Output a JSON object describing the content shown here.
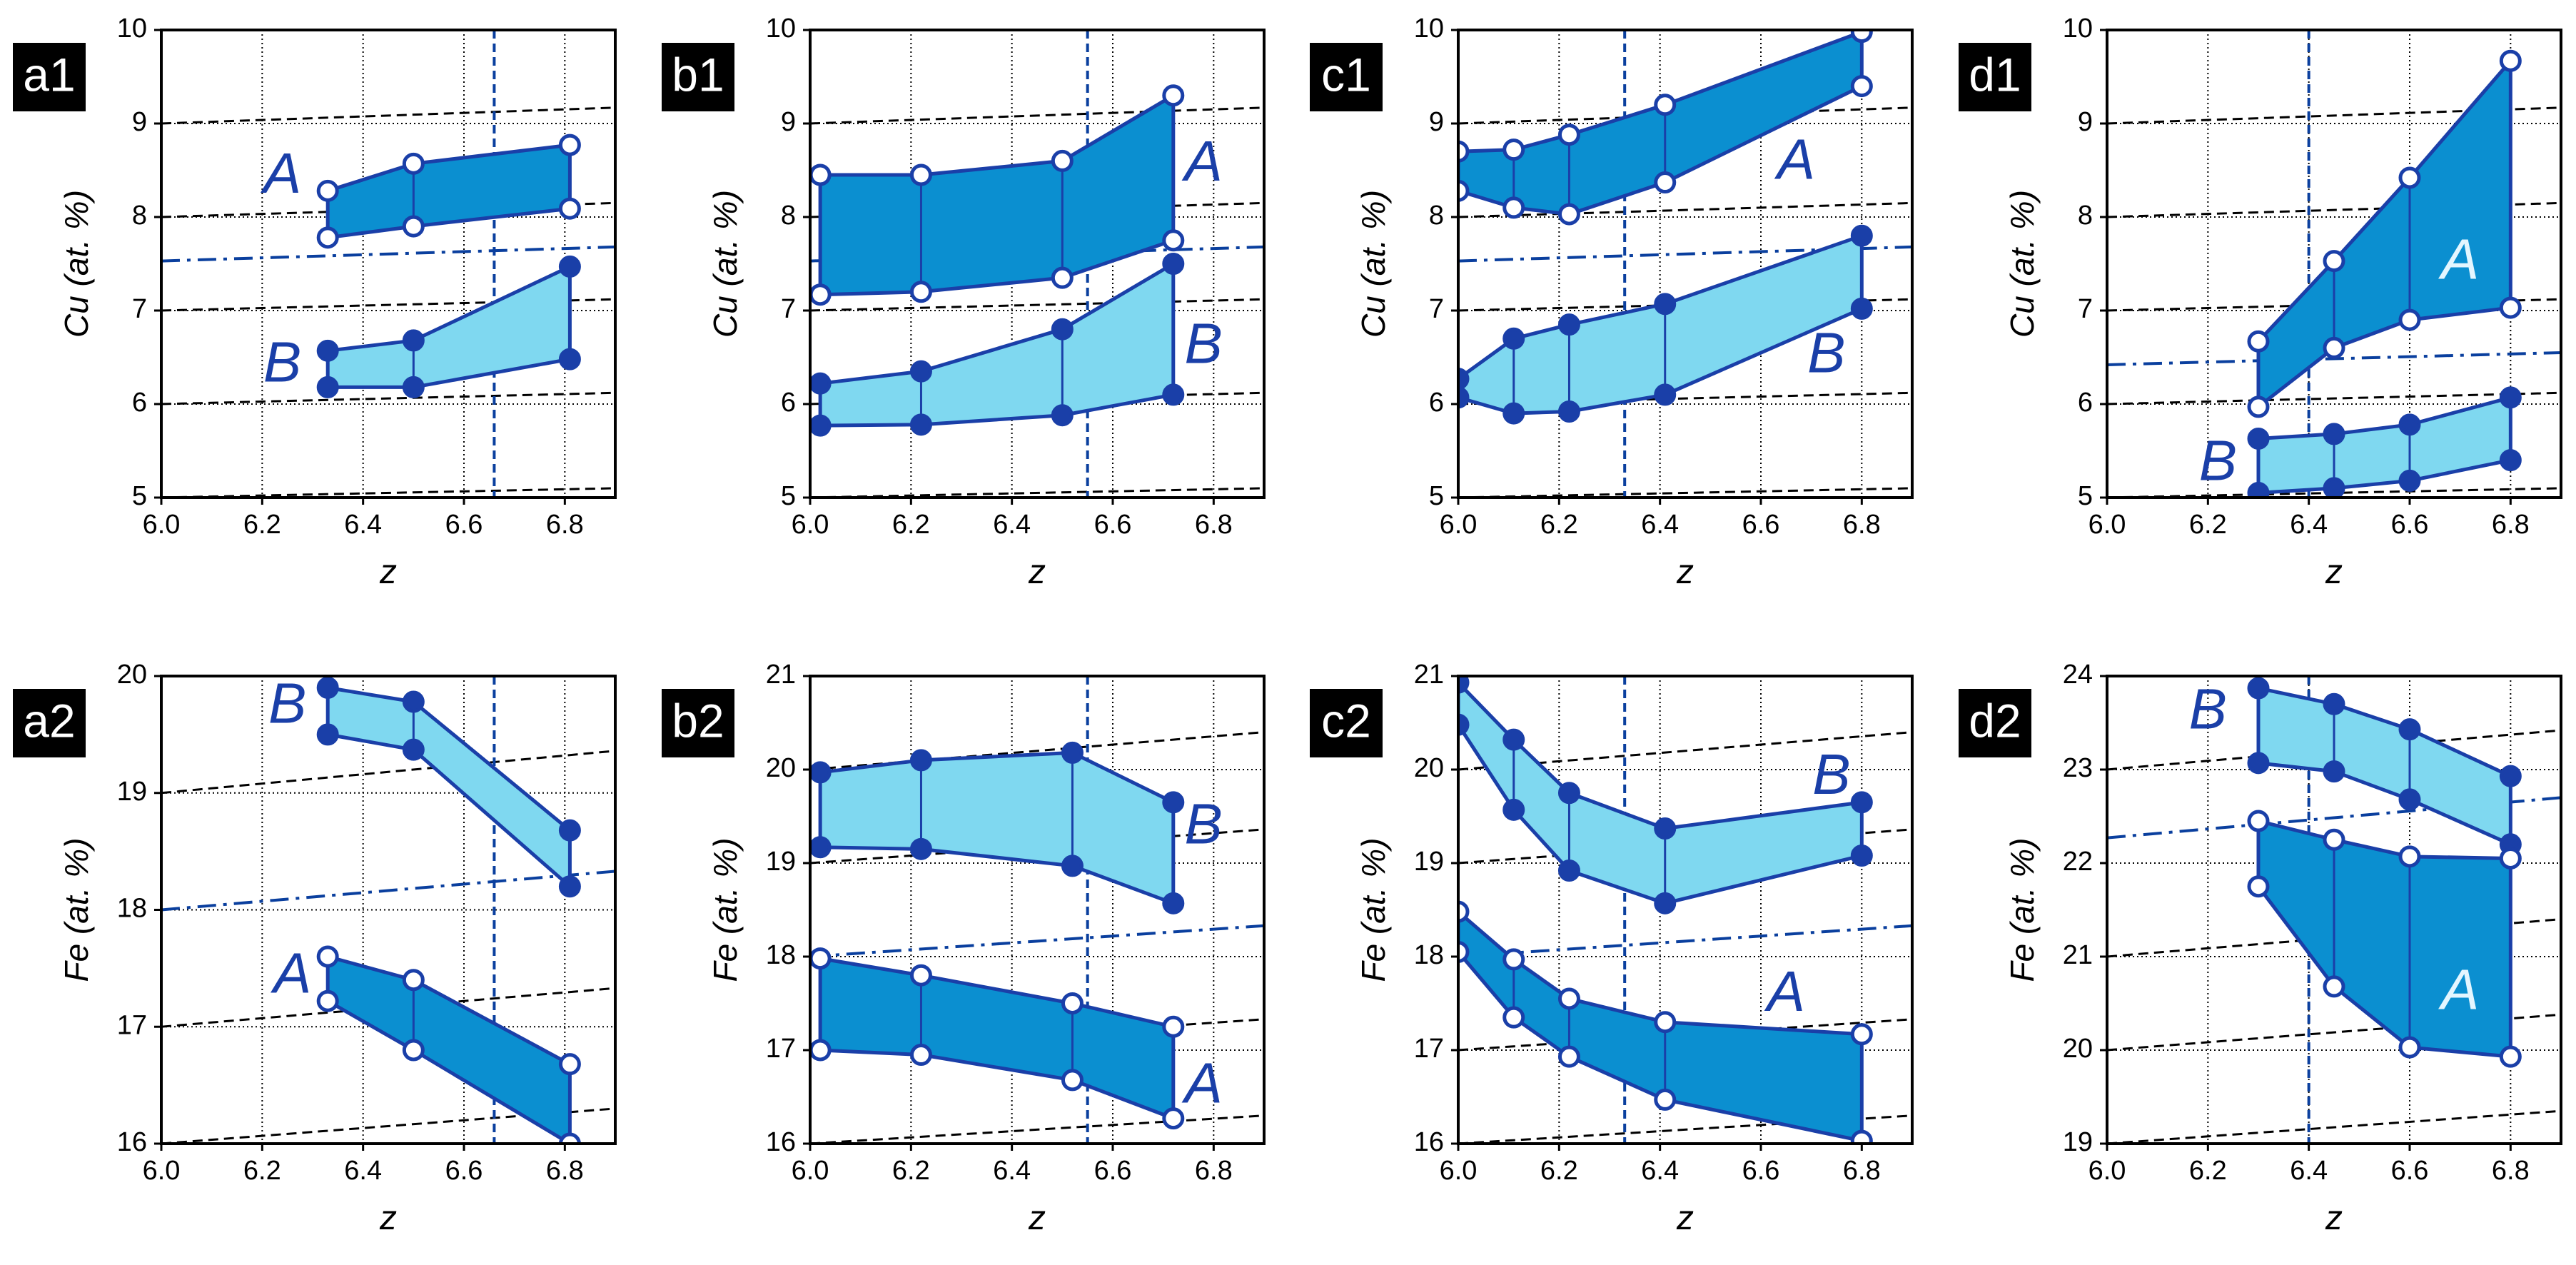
{
  "colors": {
    "outline": "#1a3fa8",
    "band_A": "#0b8fd0",
    "band_B": "#7fd8f0",
    "guide": "#0a3f9e",
    "label_bg": "#000000",
    "label_fg": "#ffffff",
    "grid": "#000000",
    "dashed": "#000000"
  },
  "chart_data": [
    {
      "type": "area",
      "panel": "a1",
      "xlabel": "z",
      "ylabel": "Cu (at. %)",
      "xlim": [
        6.0,
        6.9
      ],
      "ylim": [
        5,
        10
      ],
      "xticks": [
        "6.0",
        "6.2",
        "6.4",
        "6.6",
        "6.8"
      ],
      "yticks": [
        "5",
        "6",
        "7",
        "8",
        "9",
        "10"
      ],
      "grid": true,
      "vline": 6.66,
      "dashdot": [
        [
          6.0,
          7.53
        ],
        [
          6.9,
          7.68
        ]
      ],
      "dashed": [
        [
          [
            6.0,
            5.0
          ],
          [
            6.9,
            5.1
          ]
        ],
        [
          [
            6.0,
            6.0
          ],
          [
            6.9,
            6.12
          ]
        ],
        [
          [
            6.0,
            7.0
          ],
          [
            6.9,
            7.12
          ]
        ],
        [
          [
            6.0,
            8.0
          ],
          [
            6.9,
            8.15
          ]
        ],
        [
          [
            6.0,
            9.0
          ],
          [
            6.9,
            9.17
          ]
        ]
      ],
      "series": [
        {
          "name": "A",
          "x": [
            6.33,
            6.5,
            6.81
          ],
          "upper": [
            8.28,
            8.57,
            8.77
          ],
          "lower": [
            7.78,
            7.9,
            8.09
          ],
          "label_at": [
            6.24,
            8.42
          ],
          "marker_upper": "open",
          "marker_lower": "open"
        },
        {
          "name": "B",
          "x": [
            6.33,
            6.5,
            6.81
          ],
          "upper": [
            6.57,
            6.68,
            7.47
          ],
          "lower": [
            6.18,
            6.18,
            6.48
          ],
          "label_at": [
            6.24,
            6.4
          ],
          "marker_upper": "filled",
          "marker_lower": "filled"
        }
      ]
    },
    {
      "type": "area",
      "panel": "b1",
      "xlabel": "z",
      "ylabel": "Cu (at. %)",
      "xlim": [
        6.0,
        6.9
      ],
      "ylim": [
        5,
        10
      ],
      "xticks": [
        "6.0",
        "6.2",
        "6.4",
        "6.6",
        "6.8"
      ],
      "yticks": [
        "5",
        "6",
        "7",
        "8",
        "9",
        "10"
      ],
      "grid": true,
      "vline": 6.55,
      "dashdot": [
        [
          6.0,
          7.53
        ],
        [
          6.9,
          7.68
        ]
      ],
      "dashed": [
        [
          [
            6.0,
            5.0
          ],
          [
            6.9,
            5.1
          ]
        ],
        [
          [
            6.0,
            6.0
          ],
          [
            6.9,
            6.12
          ]
        ],
        [
          [
            6.0,
            7.0
          ],
          [
            6.9,
            7.12
          ]
        ],
        [
          [
            6.0,
            8.0
          ],
          [
            6.9,
            8.15
          ]
        ],
        [
          [
            6.0,
            9.0
          ],
          [
            6.9,
            9.17
          ]
        ]
      ],
      "series": [
        {
          "name": "A",
          "x": [
            6.02,
            6.22,
            6.5,
            6.72
          ],
          "upper": [
            8.45,
            8.45,
            8.6,
            9.3
          ],
          "lower": [
            7.17,
            7.2,
            7.35,
            7.75
          ],
          "label_at": [
            6.78,
            8.55
          ],
          "marker_upper": "open",
          "marker_lower": "open"
        },
        {
          "name": "B",
          "x": [
            6.02,
            6.22,
            6.5,
            6.72
          ],
          "upper": [
            6.22,
            6.35,
            6.8,
            7.5
          ],
          "lower": [
            5.77,
            5.78,
            5.88,
            6.1
          ],
          "label_at": [
            6.78,
            6.6
          ],
          "marker_upper": "filled",
          "marker_lower": "filled"
        }
      ]
    },
    {
      "type": "area",
      "panel": "c1",
      "xlabel": "z",
      "ylabel": "Cu (at. %)",
      "xlim": [
        6.0,
        6.9
      ],
      "ylim": [
        5,
        10
      ],
      "xticks": [
        "6.0",
        "6.2",
        "6.4",
        "6.6",
        "6.8"
      ],
      "yticks": [
        "5",
        "6",
        "7",
        "8",
        "9",
        "10"
      ],
      "grid": true,
      "vline": 6.33,
      "dashdot": [
        [
          6.0,
          7.53
        ],
        [
          6.9,
          7.68
        ]
      ],
      "dashed": [
        [
          [
            6.0,
            5.0
          ],
          [
            6.9,
            5.1
          ]
        ],
        [
          [
            6.0,
            6.0
          ],
          [
            6.9,
            6.12
          ]
        ],
        [
          [
            6.0,
            7.0
          ],
          [
            6.9,
            7.12
          ]
        ],
        [
          [
            6.0,
            8.0
          ],
          [
            6.9,
            8.15
          ]
        ],
        [
          [
            6.0,
            9.0
          ],
          [
            6.9,
            9.17
          ]
        ]
      ],
      "series": [
        {
          "name": "A",
          "x": [
            6.0,
            6.11,
            6.22,
            6.41,
            6.8
          ],
          "upper": [
            8.7,
            8.72,
            8.88,
            9.2,
            9.98
          ],
          "lower": [
            8.28,
            8.1,
            8.03,
            8.37,
            9.4
          ],
          "label_at": [
            6.67,
            8.57
          ],
          "marker_upper": "open",
          "marker_lower": "open"
        },
        {
          "name": "B",
          "x": [
            6.0,
            6.11,
            6.22,
            6.41,
            6.8
          ],
          "upper": [
            6.27,
            6.7,
            6.85,
            7.07,
            7.8
          ],
          "lower": [
            6.07,
            5.9,
            5.92,
            6.1,
            7.02
          ],
          "label_at": [
            6.73,
            6.5
          ],
          "marker_upper": "filled",
          "marker_lower": "filled"
        }
      ]
    },
    {
      "type": "area",
      "panel": "d1",
      "xlabel": "z",
      "ylabel": "Cu (at. %)",
      "xlim": [
        6.0,
        6.9
      ],
      "ylim": [
        5,
        10
      ],
      "xticks": [
        "6.0",
        "6.2",
        "6.4",
        "6.6",
        "6.8"
      ],
      "yticks": [
        "5",
        "6",
        "7",
        "8",
        "9",
        "10"
      ],
      "grid": true,
      "vline": 6.4,
      "dashdot": [
        [
          6.0,
          6.42
        ],
        [
          6.9,
          6.55
        ]
      ],
      "dashed": [
        [
          [
            6.0,
            5.0
          ],
          [
            6.9,
            5.1
          ]
        ],
        [
          [
            6.0,
            6.0
          ],
          [
            6.9,
            6.12
          ]
        ],
        [
          [
            6.0,
            7.0
          ],
          [
            6.9,
            7.12
          ]
        ],
        [
          [
            6.0,
            8.0
          ],
          [
            6.9,
            8.15
          ]
        ],
        [
          [
            6.0,
            9.0
          ],
          [
            6.9,
            9.17
          ]
        ]
      ],
      "series": [
        {
          "name": "A",
          "x": [
            6.3,
            6.45,
            6.6,
            6.8
          ],
          "upper": [
            6.67,
            7.53,
            8.42,
            9.67
          ],
          "lower": [
            5.97,
            6.6,
            6.9,
            7.03
          ],
          "label_at": [
            6.7,
            7.5
          ],
          "marker_upper": "open",
          "marker_lower": "open",
          "label_color": "#e4f6ff"
        },
        {
          "name": "B",
          "x": [
            6.3,
            6.45,
            6.6,
            6.8
          ],
          "upper": [
            5.63,
            5.68,
            5.78,
            6.07
          ],
          "lower": [
            5.05,
            5.1,
            5.18,
            5.4
          ],
          "label_at": [
            6.22,
            5.35
          ],
          "marker_upper": "filled",
          "marker_lower": "filled"
        }
      ]
    },
    {
      "type": "area",
      "panel": "a2",
      "xlabel": "z",
      "ylabel": "Fe (at. %)",
      "xlim": [
        6.0,
        6.9
      ],
      "ylim": [
        16,
        20
      ],
      "xticks": [
        "6.0",
        "6.2",
        "6.4",
        "6.6",
        "6.8"
      ],
      "yticks": [
        "16",
        "17",
        "18",
        "19",
        "20"
      ],
      "grid": true,
      "vline": 6.66,
      "dashdot": [
        [
          6.0,
          18.0
        ],
        [
          6.9,
          18.33
        ]
      ],
      "dashed": [
        [
          [
            6.0,
            16.0
          ],
          [
            6.9,
            16.3
          ]
        ],
        [
          [
            6.0,
            17.0
          ],
          [
            6.9,
            17.33
          ]
        ],
        [
          [
            6.0,
            19.0
          ],
          [
            6.9,
            19.36
          ]
        ]
      ],
      "series": [
        {
          "name": "B",
          "x": [
            6.33,
            6.5,
            6.81
          ],
          "upper": [
            19.9,
            19.78,
            18.68
          ],
          "lower": [
            19.5,
            19.37,
            18.2
          ],
          "label_at": [
            6.25,
            19.73
          ],
          "marker_upper": "filled",
          "marker_lower": "filled"
        },
        {
          "name": "A",
          "x": [
            6.33,
            6.5,
            6.81
          ],
          "upper": [
            17.6,
            17.4,
            16.68
          ],
          "lower": [
            17.22,
            16.8,
            16.0
          ],
          "label_at": [
            6.26,
            17.42
          ],
          "marker_upper": "open",
          "marker_lower": "open"
        }
      ]
    },
    {
      "type": "area",
      "panel": "b2",
      "xlabel": "z",
      "ylabel": "Fe (at. %)",
      "xlim": [
        6.0,
        6.9
      ],
      "ylim": [
        16,
        21
      ],
      "xticks": [
        "6.0",
        "6.2",
        "6.4",
        "6.6",
        "6.8"
      ],
      "yticks": [
        "16",
        "17",
        "18",
        "19",
        "20",
        "21"
      ],
      "grid": true,
      "vline": 6.55,
      "dashdot": [
        [
          6.0,
          18.0
        ],
        [
          6.9,
          18.33
        ]
      ],
      "dashed": [
        [
          [
            6.0,
            16.0
          ],
          [
            6.9,
            16.3
          ]
        ],
        [
          [
            6.0,
            17.0
          ],
          [
            6.9,
            17.33
          ]
        ],
        [
          [
            6.0,
            19.0
          ],
          [
            6.9,
            19.36
          ]
        ],
        [
          [
            6.0,
            20.0
          ],
          [
            6.9,
            20.4
          ]
        ]
      ],
      "series": [
        {
          "name": "B",
          "x": [
            6.02,
            6.22,
            6.52,
            6.72
          ],
          "upper": [
            19.97,
            20.1,
            20.18,
            19.65
          ],
          "lower": [
            19.17,
            19.15,
            18.97,
            18.57
          ],
          "label_at": [
            6.78,
            19.37
          ],
          "marker_upper": "filled",
          "marker_lower": "filled"
        },
        {
          "name": "A",
          "x": [
            6.02,
            6.22,
            6.52,
            6.72
          ],
          "upper": [
            17.98,
            17.8,
            17.5,
            17.25
          ],
          "lower": [
            17.0,
            16.95,
            16.68,
            16.27
          ],
          "label_at": [
            6.78,
            16.6
          ],
          "marker_upper": "open",
          "marker_lower": "open"
        }
      ]
    },
    {
      "type": "area",
      "panel": "c2",
      "xlabel": "z",
      "ylabel": "Fe (at. %)",
      "xlim": [
        6.0,
        6.9
      ],
      "ylim": [
        16,
        21
      ],
      "xticks": [
        "6.0",
        "6.2",
        "6.4",
        "6.6",
        "6.8"
      ],
      "yticks": [
        "16",
        "17",
        "18",
        "19",
        "20",
        "21"
      ],
      "grid": true,
      "vline": 6.33,
      "dashdot": [
        [
          6.0,
          18.0
        ],
        [
          6.9,
          18.33
        ]
      ],
      "dashed": [
        [
          [
            6.0,
            16.0
          ],
          [
            6.9,
            16.3
          ]
        ],
        [
          [
            6.0,
            17.0
          ],
          [
            6.9,
            17.33
          ]
        ],
        [
          [
            6.0,
            19.0
          ],
          [
            6.9,
            19.36
          ]
        ],
        [
          [
            6.0,
            20.0
          ],
          [
            6.9,
            20.4
          ]
        ]
      ],
      "series": [
        {
          "name": "B",
          "x": [
            6.0,
            6.11,
            6.22,
            6.41,
            6.8
          ],
          "upper": [
            20.93,
            20.32,
            19.75,
            19.37,
            19.65
          ],
          "lower": [
            20.48,
            19.57,
            18.92,
            18.57,
            19.08
          ],
          "label_at": [
            6.74,
            19.9
          ],
          "marker_upper": "filled",
          "marker_lower": "filled"
        },
        {
          "name": "A",
          "x": [
            6.0,
            6.11,
            6.22,
            6.41,
            6.8
          ],
          "upper": [
            18.48,
            17.97,
            17.55,
            17.3,
            17.17
          ],
          "lower": [
            18.05,
            17.35,
            16.93,
            16.47,
            16.03
          ],
          "label_at": [
            6.65,
            17.58
          ],
          "marker_upper": "open",
          "marker_lower": "open"
        }
      ]
    },
    {
      "type": "area",
      "panel": "d2",
      "xlabel": "z",
      "ylabel": "Fe (at. %)",
      "xlim": [
        6.0,
        6.9
      ],
      "ylim": [
        19,
        24
      ],
      "xticks": [
        "6.0",
        "6.2",
        "6.4",
        "6.6",
        "6.8"
      ],
      "yticks": [
        "19",
        "20",
        "21",
        "22",
        "23",
        "24"
      ],
      "grid": true,
      "vline": 6.4,
      "dashdot": [
        [
          6.0,
          22.27
        ],
        [
          6.9,
          22.7
        ]
      ],
      "dashed": [
        [
          [
            6.0,
            19.0
          ],
          [
            6.9,
            19.35
          ]
        ],
        [
          [
            6.0,
            20.0
          ],
          [
            6.9,
            20.38
          ]
        ],
        [
          [
            6.0,
            21.0
          ],
          [
            6.9,
            21.4
          ]
        ],
        [
          [
            6.0,
            23.0
          ],
          [
            6.9,
            23.42
          ]
        ]
      ],
      "series": [
        {
          "name": "B",
          "x": [
            6.3,
            6.45,
            6.6,
            6.8
          ],
          "upper": [
            23.87,
            23.7,
            23.43,
            22.93
          ],
          "lower": [
            23.07,
            22.98,
            22.68,
            22.2
          ],
          "label_at": [
            6.2,
            23.6
          ],
          "marker_upper": "filled",
          "marker_lower": "filled"
        },
        {
          "name": "A",
          "x": [
            6.3,
            6.45,
            6.6,
            6.8
          ],
          "upper": [
            22.45,
            22.25,
            22.07,
            22.05
          ],
          "lower": [
            21.75,
            20.68,
            20.03,
            19.93
          ],
          "label_at": [
            6.7,
            20.6
          ],
          "marker_upper": "open",
          "marker_lower": "open",
          "label_color": "#e4f6ff"
        }
      ]
    }
  ]
}
